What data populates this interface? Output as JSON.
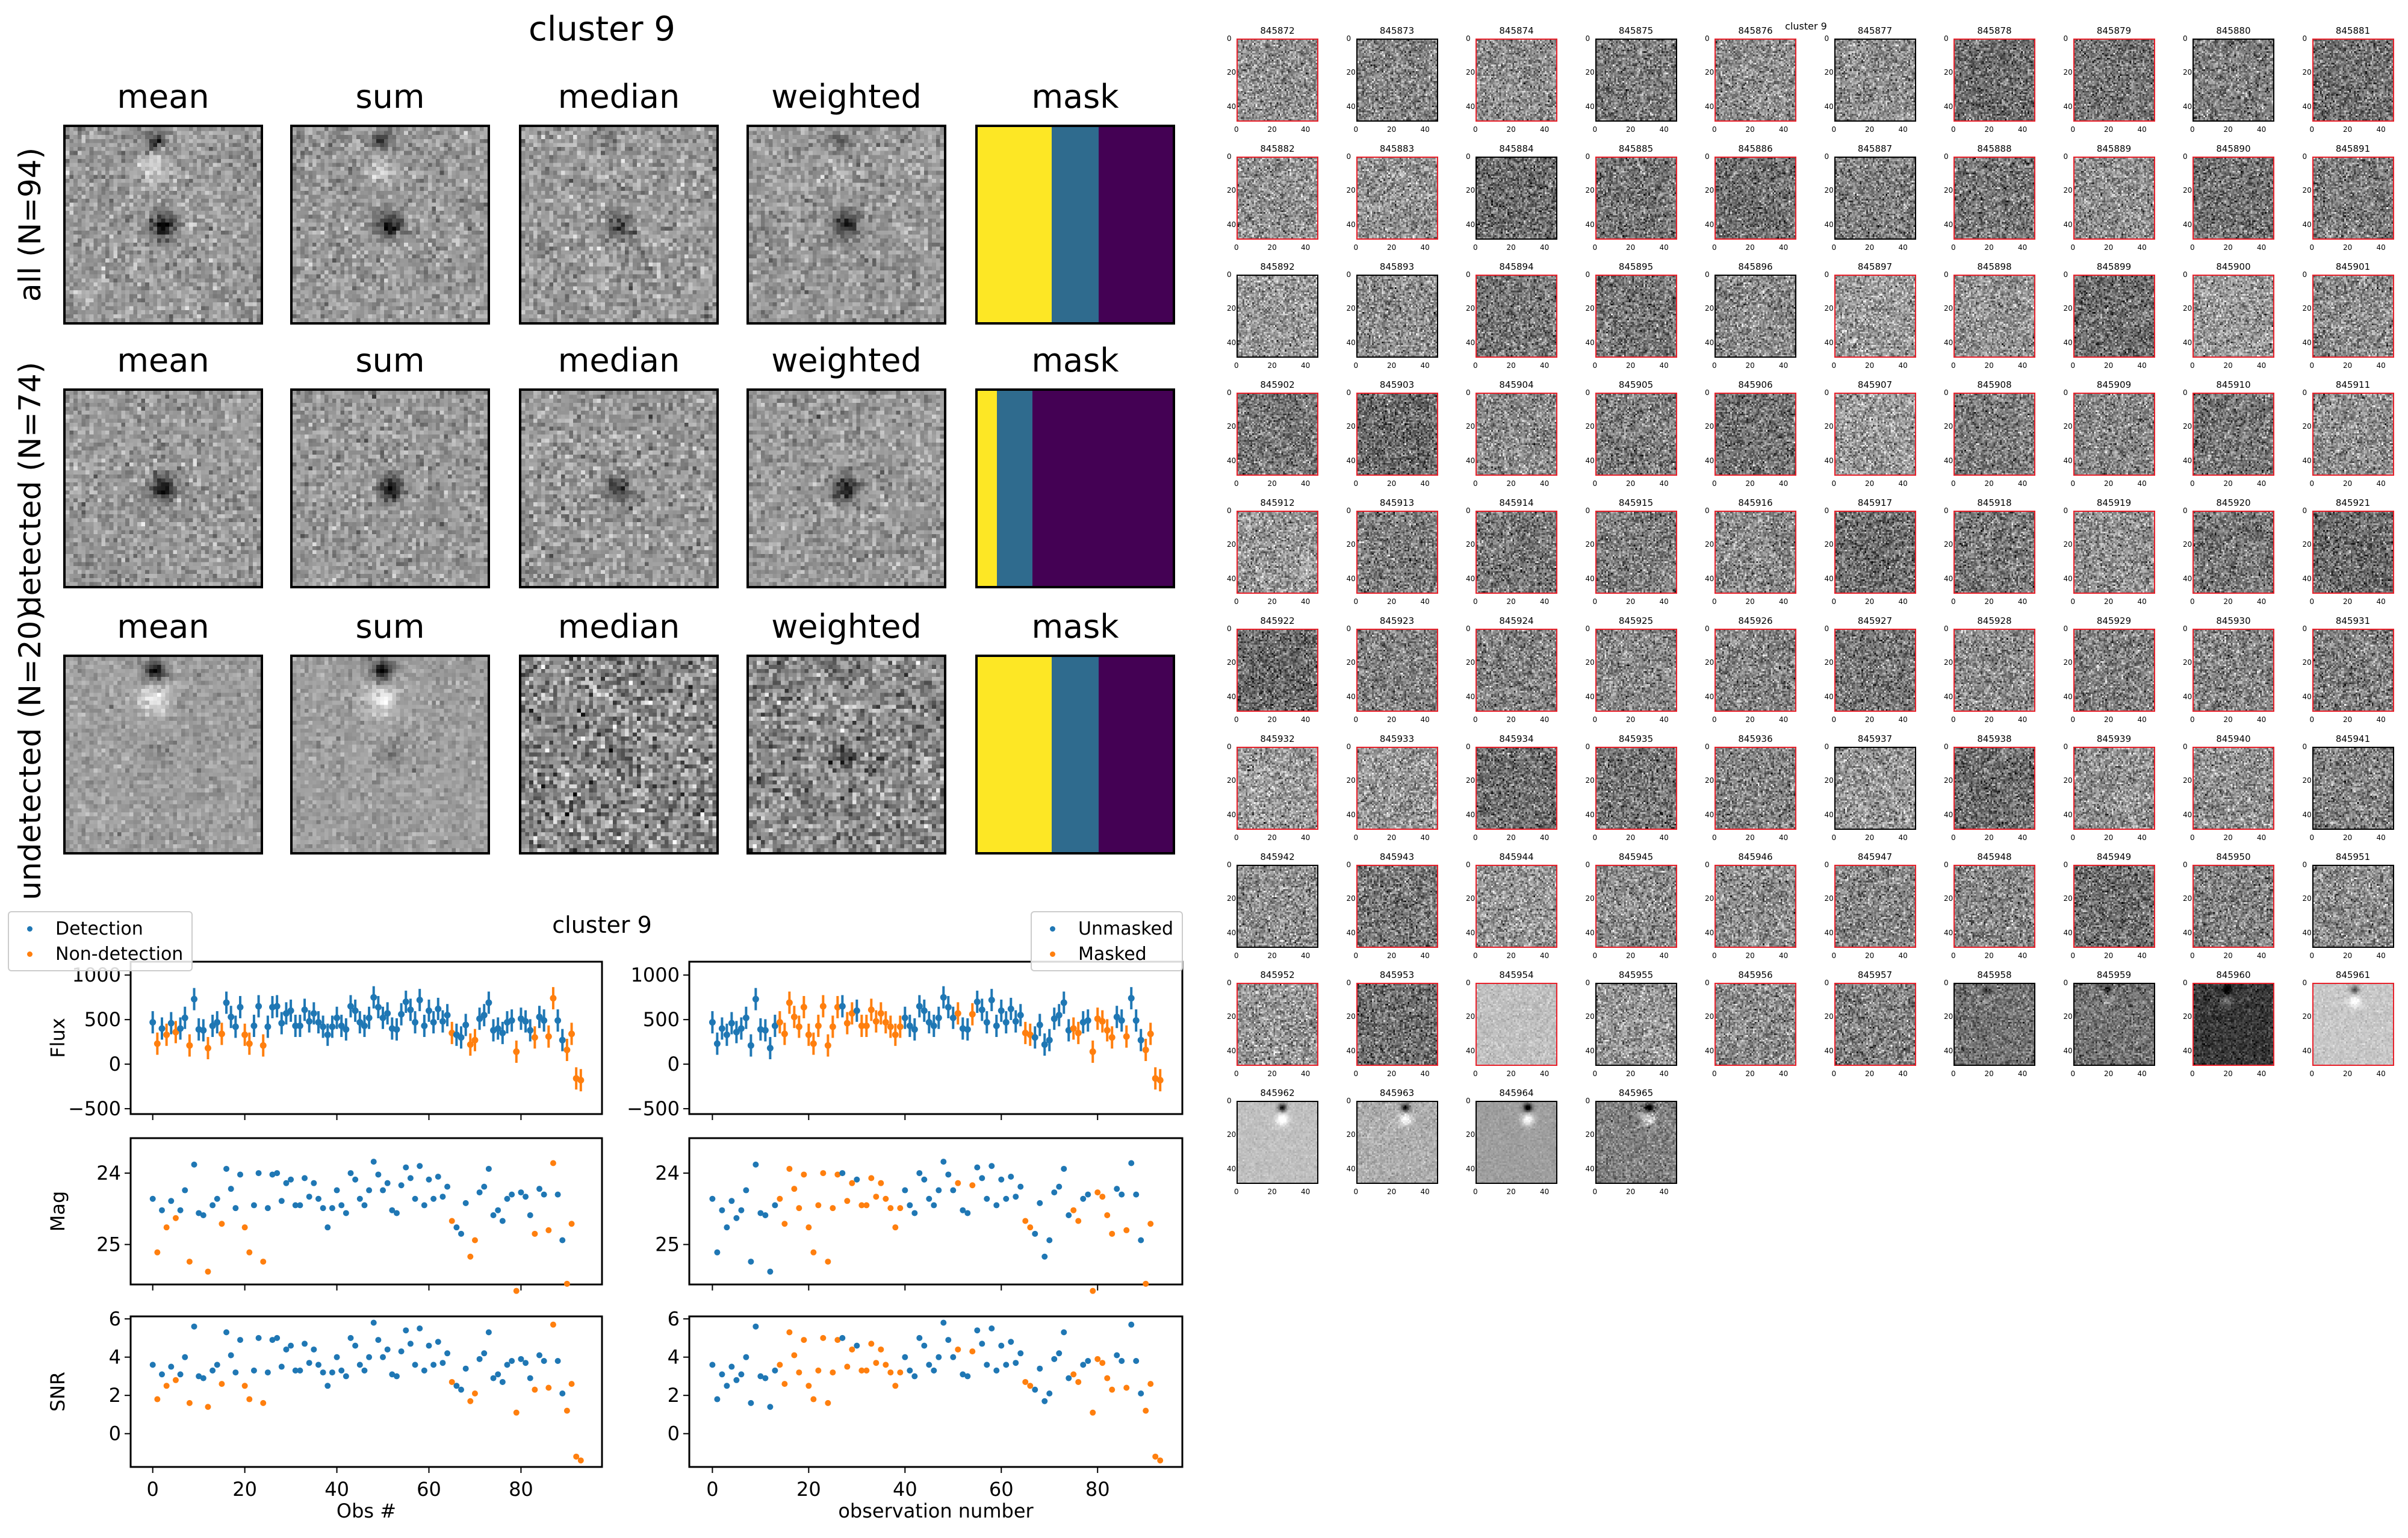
{
  "stack_figure": {
    "title": "cluster 9",
    "column_titles": [
      "mean",
      "sum",
      "median",
      "weighted",
      "mask"
    ],
    "row_labels": [
      "all (N=94)",
      "detected (N=74)",
      "undetected (N=20)"
    ],
    "mask_colors": {
      "high": "#fde725",
      "mid": "#2f6b8e",
      "low": "#440154"
    },
    "mask_fractions": [
      {
        "yellow": 0.38,
        "blue": 0.62
      },
      {
        "yellow": 0.1,
        "blue": 0.28
      },
      {
        "yellow": 0.38,
        "blue": 0.62
      }
    ]
  },
  "cutouts": {
    "title": "cluster 9",
    "tick_labels": [
      "0",
      "20",
      "40"
    ],
    "first_id": 845872,
    "ids": [
      "845872",
      "845873",
      "845874",
      "845875",
      "845876",
      "845877",
      "845878",
      "845879",
      "845880",
      "845881",
      "845882",
      "845883",
      "845884",
      "845885",
      "845886",
      "845887",
      "845888",
      "845889",
      "845890",
      "845891",
      "845892",
      "845893",
      "845894",
      "845895",
      "845896",
      "845897",
      "845898",
      "845899",
      "845900",
      "845901",
      "845902",
      "845903",
      "845904",
      "845905",
      "845906",
      "845907",
      "845908",
      "845909",
      "845910",
      "845911",
      "845912",
      "845913",
      "845914",
      "845915",
      "845916",
      "845917",
      "845918",
      "845919",
      "845920",
      "845921",
      "845922",
      "845923",
      "845924",
      "845925",
      "845926",
      "845927",
      "845928",
      "845929",
      "845930",
      "845931",
      "845932",
      "845933",
      "845934",
      "845935",
      "845936",
      "845937",
      "845938",
      "845939",
      "845940",
      "845941",
      "845942",
      "845943",
      "845944",
      "845945",
      "845946",
      "845947",
      "845948",
      "845949",
      "845950",
      "845951",
      "845952",
      "845953",
      "845954",
      "845955",
      "845956",
      "845957",
      "845958",
      "845959",
      "845960",
      "845961",
      "845962",
      "845963",
      "845964",
      "845965"
    ],
    "undetected_ids": [
      "845873",
      "845875",
      "845877",
      "845880",
      "845884",
      "845887",
      "845892",
      "845893",
      "845896",
      "845937",
      "845941",
      "845942",
      "845951",
      "845955",
      "845958",
      "845959",
      "845962",
      "845963",
      "845964",
      "845965"
    ],
    "border_colors": {
      "detected": "#e8202a",
      "undetected": "#000000"
    }
  },
  "chart_data": {
    "type": "scatter",
    "title": "cluster 9",
    "colors": {
      "blue": "#1f77b4",
      "orange": "#ff7f0e"
    },
    "legends": {
      "left": [
        "Detection",
        "Non-detection"
      ],
      "right": [
        "Unmasked",
        "Masked"
      ]
    },
    "xlabels": [
      "Obs #",
      "observation number"
    ],
    "ylabels": {
      "flux": "Flux",
      "mag": "Mag",
      "snr": "SNR"
    },
    "xlim": [
      -4.8,
      97.6
    ],
    "xticks": [
      0,
      20,
      40,
      60,
      80
    ],
    "ylim": {
      "flux": [
        -560,
        1150
      ],
      "mag": [
        25.56,
        23.51
      ],
      "snr": [
        -1.74,
        6.13
      ]
    },
    "yticks": {
      "flux": [
        -500,
        0,
        500,
        1000
      ],
      "mag": [
        24,
        25
      ],
      "snr": [
        0,
        2,
        4,
        6
      ]
    },
    "non_detection_idx": [
      1,
      3,
      5,
      8,
      12,
      15,
      20,
      21,
      24,
      65,
      69,
      70,
      79,
      83,
      86,
      87,
      90,
      91,
      92,
      93
    ],
    "masked_idx": [
      14,
      15,
      16,
      17,
      18,
      19,
      20,
      21,
      22,
      23,
      24,
      25,
      26,
      28,
      29,
      31,
      32,
      33,
      34,
      35,
      36,
      37,
      38,
      39,
      51,
      54,
      65,
      66,
      75,
      76,
      79,
      80,
      81,
      82,
      83,
      86,
      90,
      91,
      92,
      93
    ],
    "flux": [
      470,
      230,
      400,
      330,
      460,
      360,
      400,
      520,
      210,
      730,
      390,
      380,
      180,
      430,
      470,
      340,
      690,
      530,
      420,
      640,
      330,
      230,
      430,
      650,
      210,
      420,
      640,
      650,
      460,
      570,
      600,
      430,
      430,
      610,
      480,
      570,
      470,
      420,
      330,
      420,
      520,
      430,
      390,
      650,
      600,
      470,
      430,
      520,
      750,
      640,
      520,
      570,
      400,
      390,
      560,
      700,
      610,
      470,
      720,
      430,
      600,
      470,
      620,
      480,
      550,
      350,
      330,
      300,
      440,
      220,
      270,
      510,
      550,
      690,
      380,
      400,
      350,
      470,
      490,
      140,
      510,
      480,
      380,
      300,
      530,
      490,
      310,
      740,
      490,
      270,
      160,
      340,
      -160,
      -180
    ],
    "flux_err": 125,
    "mag": [
      24.36,
      25.11,
      24.52,
      24.76,
      24.39,
      24.63,
      24.52,
      24.24,
      25.24,
      23.88,
      24.56,
      24.59,
      25.38,
      24.45,
      24.36,
      24.71,
      23.94,
      24.22,
      24.49,
      24.02,
      24.76,
      25.11,
      24.45,
      24.0,
      25.24,
      24.49,
      24.02,
      24.0,
      24.39,
      24.14,
      24.09,
      24.45,
      24.45,
      24.07,
      24.33,
      24.14,
      24.36,
      24.49,
      24.76,
      24.49,
      24.24,
      24.45,
      24.56,
      24.0,
      24.09,
      24.36,
      24.45,
      24.24,
      23.84,
      24.02,
      24.24,
      24.14,
      24.52,
      24.56,
      24.17,
      23.92,
      24.07,
      24.36,
      23.9,
      24.45,
      24.09,
      24.36,
      24.05,
      24.33,
      24.19,
      24.67,
      24.76,
      24.85,
      24.42,
      25.17,
      24.94,
      24.27,
      24.19,
      23.94,
      24.59,
      24.52,
      24.67,
      24.36,
      24.3,
      25.65,
      24.27,
      24.33,
      24.59,
      24.85,
      24.22,
      24.3,
      24.8,
      23.86,
      24.3,
      24.94,
      25.55,
      24.71,
      null,
      null
    ],
    "snr": [
      3.6,
      1.8,
      3.1,
      2.5,
      3.5,
      2.8,
      3.1,
      4.0,
      1.6,
      5.6,
      3.0,
      2.9,
      1.4,
      3.3,
      3.6,
      2.6,
      5.3,
      4.1,
      3.2,
      4.9,
      2.5,
      1.8,
      3.3,
      5.0,
      1.6,
      3.2,
      4.9,
      5.0,
      3.5,
      4.4,
      4.6,
      3.3,
      3.3,
      4.7,
      3.7,
      4.4,
      3.6,
      3.2,
      2.5,
      3.2,
      4.0,
      3.3,
      3.0,
      5.0,
      4.6,
      3.6,
      3.3,
      4.0,
      5.8,
      4.9,
      4.0,
      4.4,
      3.1,
      3.0,
      4.3,
      5.4,
      4.7,
      3.6,
      5.5,
      3.3,
      4.6,
      3.6,
      4.8,
      3.7,
      4.2,
      2.7,
      2.5,
      2.3,
      3.4,
      1.7,
      2.1,
      3.9,
      4.2,
      5.3,
      2.9,
      3.1,
      2.7,
      3.6,
      3.8,
      1.1,
      3.9,
      3.7,
      2.9,
      2.3,
      4.1,
      3.8,
      2.4,
      5.7,
      3.8,
      2.1,
      1.2,
      2.6,
      -1.2,
      -1.4
    ]
  }
}
